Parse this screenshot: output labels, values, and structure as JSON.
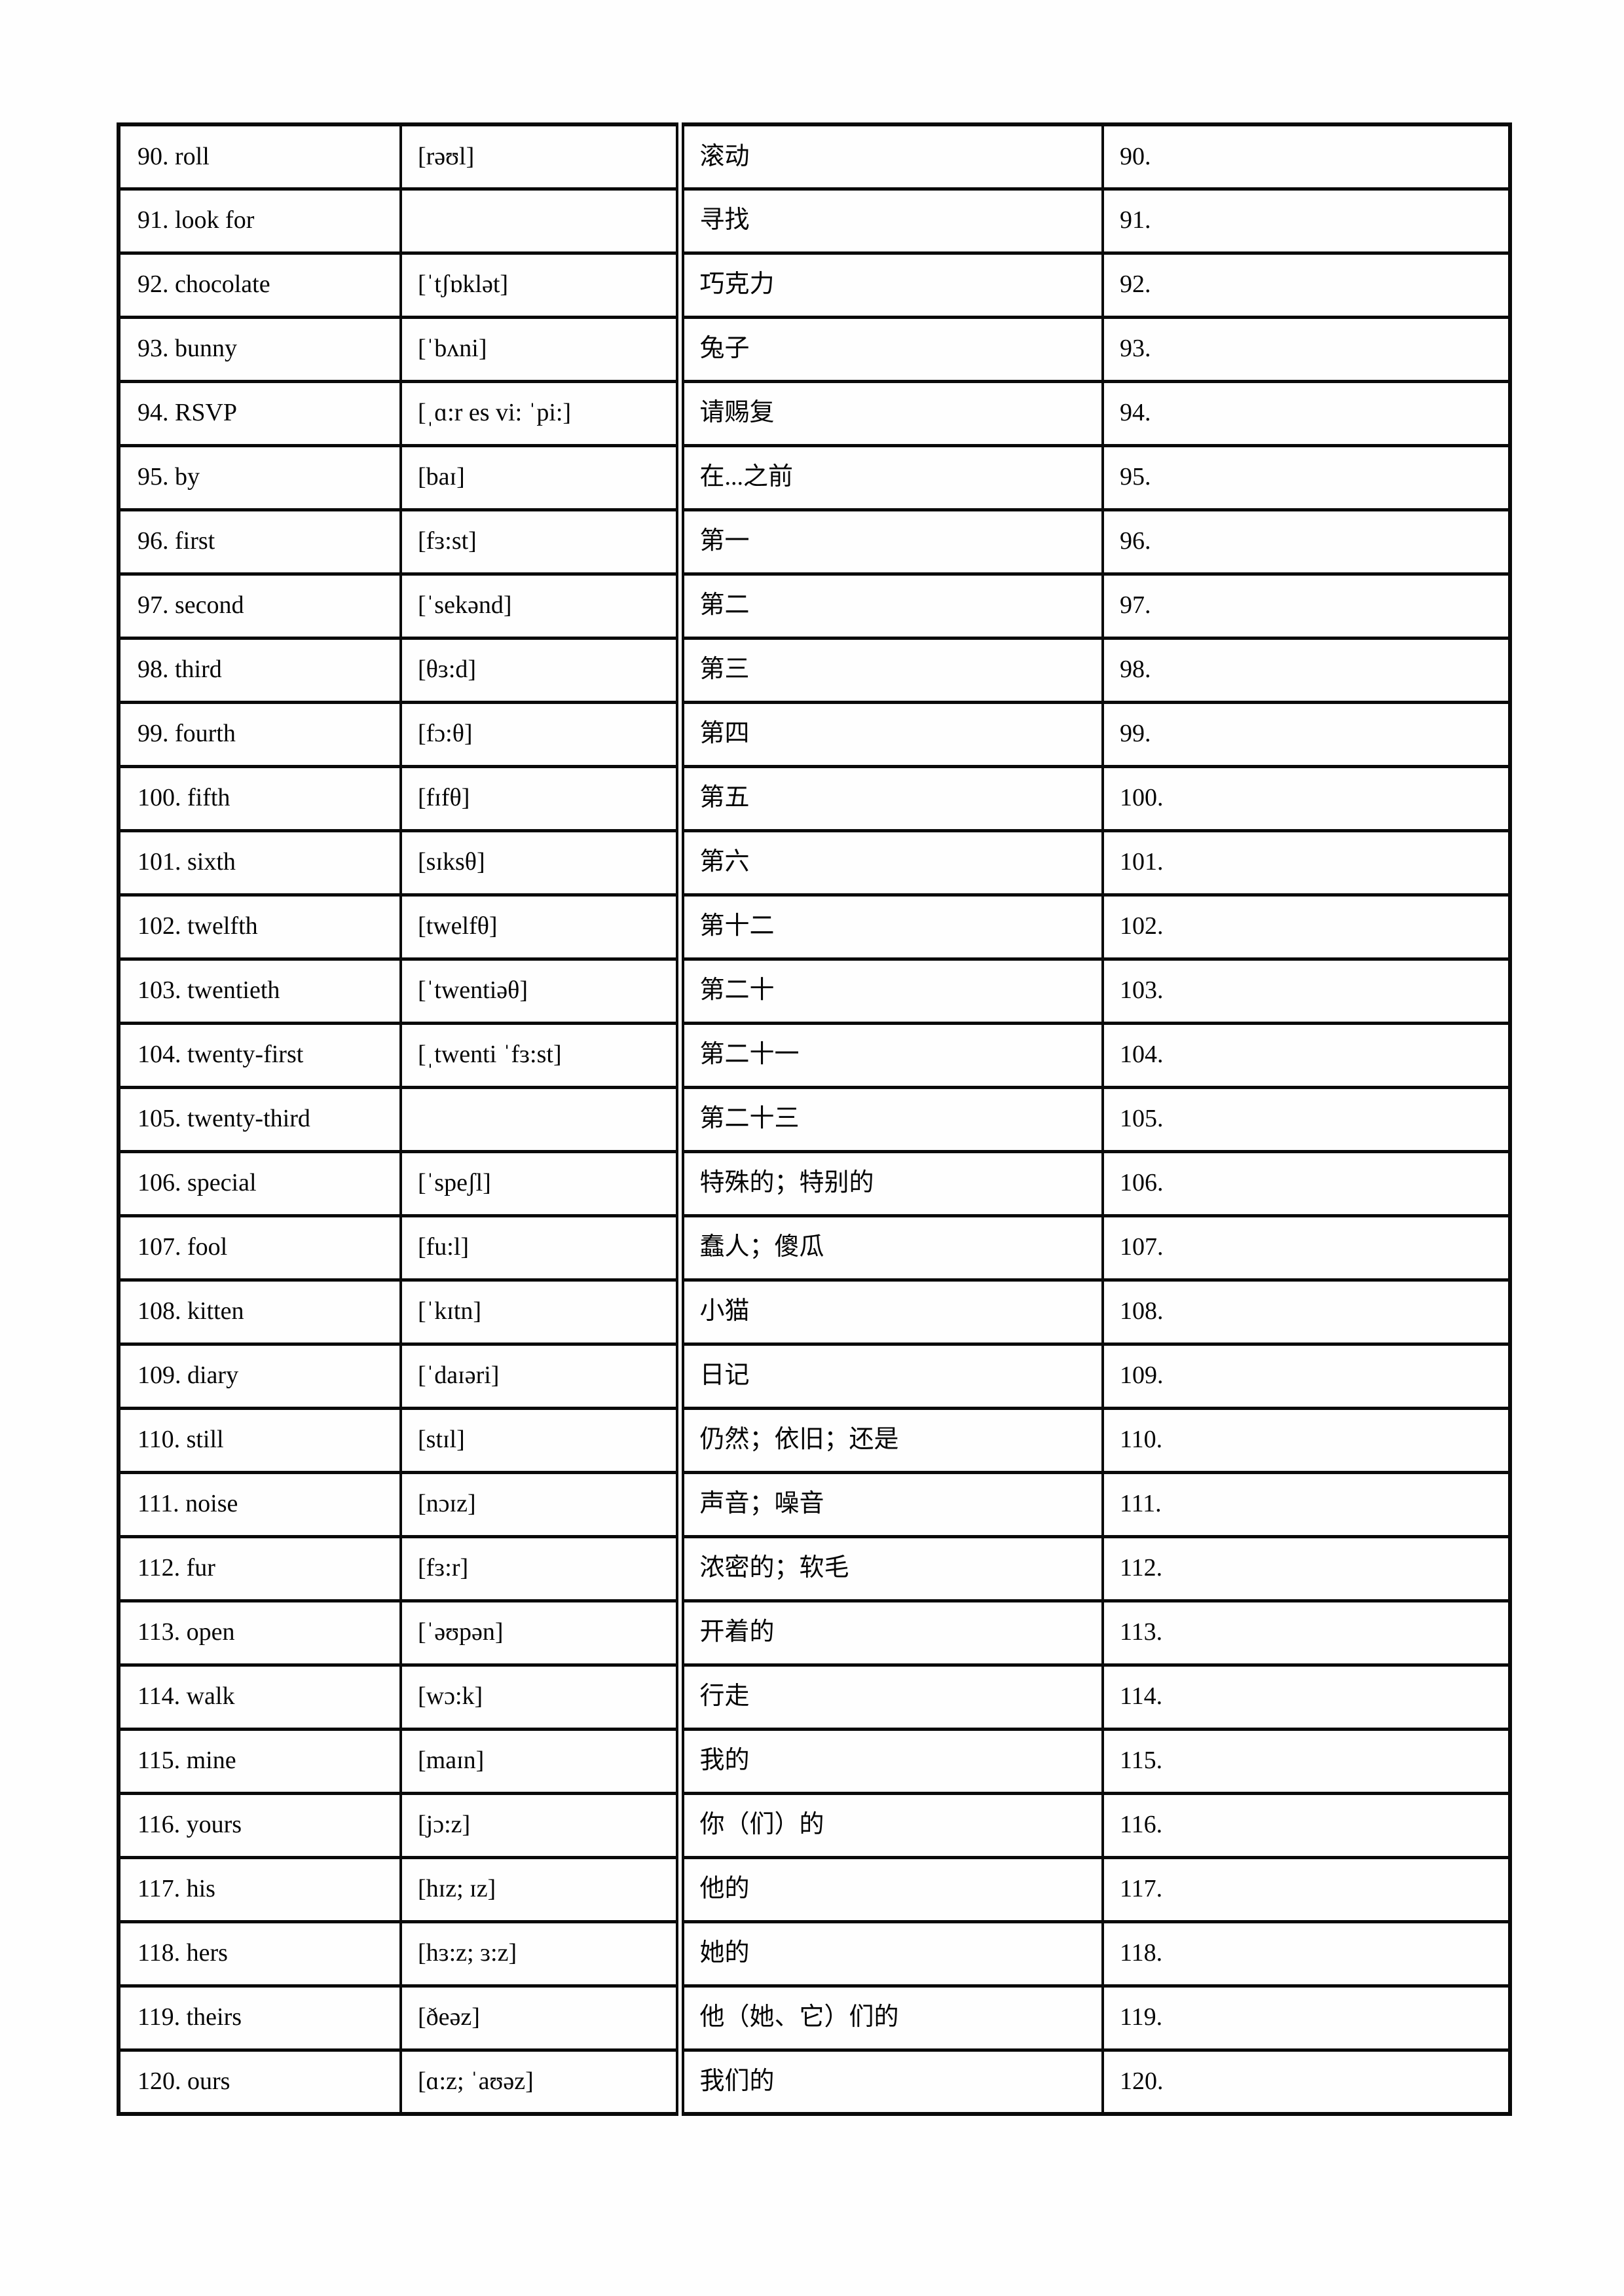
{
  "page": {
    "kind": "vocabulary-table-document",
    "background_color": "#fefefe",
    "text_color": "#050505",
    "border_color": "#0a0a0a"
  },
  "table": {
    "columns": [
      "word",
      "phonetic",
      "meaning",
      "number"
    ],
    "rows": [
      {
        "word": "90. roll",
        "phonetic": "[rəʊl]",
        "meaning": "滚动",
        "number": "90."
      },
      {
        "word": "91. look for",
        "phonetic": "",
        "meaning": "寻找",
        "number": "91."
      },
      {
        "word": "92. chocolate",
        "phonetic": "[ˈtʃɒklət]",
        "meaning": "巧克力",
        "number": "92."
      },
      {
        "word": "93. bunny",
        "phonetic": "[ˈbʌni]",
        "meaning": "兔子",
        "number": "93."
      },
      {
        "word": "94. RSVP",
        "phonetic": "[ˌɑ:r es vi: ˈpi:]",
        "meaning": "请赐复",
        "number": "94."
      },
      {
        "word": "95. by",
        "phonetic": "[baɪ]",
        "meaning": "在...之前",
        "number": "95."
      },
      {
        "word": "96. first",
        "phonetic": "[fɜ:st]",
        "meaning": "第一",
        "number": "96."
      },
      {
        "word": "97. second",
        "phonetic": "[ˈsekənd]",
        "meaning": "第二",
        "number": "97."
      },
      {
        "word": "98. third",
        "phonetic": "[θɜ:d]",
        "meaning": "第三",
        "number": "98."
      },
      {
        "word": "99. fourth",
        "phonetic": "[fɔ:θ]",
        "meaning": "第四",
        "number": "99."
      },
      {
        "word": "100. fifth",
        "phonetic": "[fɪfθ]",
        "meaning": "第五",
        "number": "100."
      },
      {
        "word": "101. sixth",
        "phonetic": "[sɪksθ]",
        "meaning": "第六",
        "number": "101."
      },
      {
        "word": "102. twelfth",
        "phonetic": "[twelfθ]",
        "meaning": "第十二",
        "number": "102."
      },
      {
        "word": "103. twentieth",
        "phonetic": "[ˈtwentiəθ]",
        "meaning": "第二十",
        "number": "103."
      },
      {
        "word": "104. twenty-first",
        "phonetic": "[ˌtwenti ˈfɜ:st]",
        "meaning": "第二十一",
        "number": "104."
      },
      {
        "word": "105. twenty-third",
        "phonetic": "",
        "meaning": "第二十三",
        "number": "105."
      },
      {
        "word": "106. special",
        "phonetic": "[ˈspeʃl]",
        "meaning": "特殊的；特别的",
        "number": "106."
      },
      {
        "word": "107. fool",
        "phonetic": "[fu:l]",
        "meaning": "蠢人；傻瓜",
        "number": "107."
      },
      {
        "word": "108. kitten",
        "phonetic": "[ˈkɪtn]",
        "meaning": "小猫",
        "number": "108."
      },
      {
        "word": "109. diary",
        "phonetic": "[ˈdaɪəri]",
        "meaning": "日记",
        "number": "109."
      },
      {
        "word": "110. still",
        "phonetic": "[stɪl]",
        "meaning": "仍然；依旧；还是",
        "number": "110."
      },
      {
        "word": "111. noise",
        "phonetic": "[nɔɪz]",
        "meaning": "声音；噪音",
        "number": "111."
      },
      {
        "word": "112. fur",
        "phonetic": "[fɜ:r]",
        "meaning": "浓密的；软毛",
        "number": "112."
      },
      {
        "word": "113. open",
        "phonetic": "[ˈəʊpən]",
        "meaning": "开着的",
        "number": "113."
      },
      {
        "word": "114. walk",
        "phonetic": "[wɔ:k]",
        "meaning": "行走",
        "number": "114."
      },
      {
        "word": "115. mine",
        "phonetic": "[maɪn]",
        "meaning": "我的",
        "number": "115."
      },
      {
        "word": "116. yours",
        "phonetic": "[jɔ:z]",
        "meaning": "你（们）的",
        "number": "116."
      },
      {
        "word": "117. his",
        "phonetic": "[hɪz; ɪz]",
        "meaning": "他的",
        "number": "117."
      },
      {
        "word": "118. hers",
        "phonetic": "[hɜ:z; ɜ:z]",
        "meaning": "她的",
        "number": "118."
      },
      {
        "word": "119. theirs",
        "phonetic": "[ðeəz]",
        "meaning": "他（她、它）们的",
        "number": "119."
      },
      {
        "word": "120. ours",
        "phonetic": "[ɑ:z; ˈaʊəz]",
        "meaning": "我们的",
        "number": "120."
      }
    ]
  }
}
